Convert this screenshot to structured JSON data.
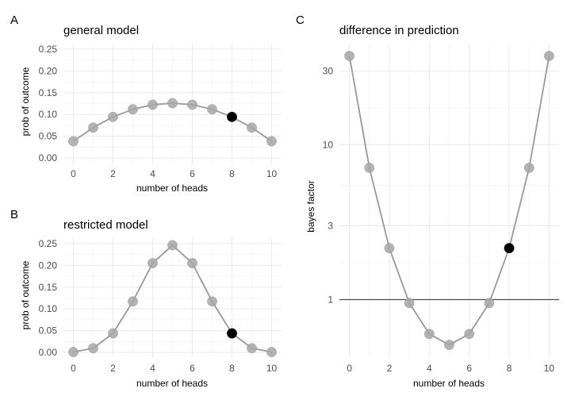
{
  "panel_tags": [
    "A",
    "B",
    "C"
  ],
  "chart_data": [
    {
      "id": "A",
      "type": "scatter",
      "title": "general model",
      "xlabel": "number of heads",
      "ylabel": "prob of outcome",
      "x": [
        0,
        1,
        2,
        3,
        4,
        5,
        6,
        7,
        8,
        9,
        10
      ],
      "values": [
        0.0385,
        0.0699,
        0.0944,
        0.1119,
        0.1224,
        0.1259,
        0.1224,
        0.1119,
        0.0944,
        0.0699,
        0.0385
      ],
      "highlight_index": 8,
      "xlim": [
        -0.5,
        10.5
      ],
      "ylim": [
        -0.0125,
        0.2625
      ],
      "xticks": [
        0,
        2,
        4,
        6,
        8,
        10
      ],
      "xtick_labels": [
        "0",
        "2",
        "4",
        "6",
        "8",
        "10"
      ],
      "yticks": [
        0,
        0.05,
        0.1,
        0.15,
        0.2,
        0.25
      ],
      "ytick_labels": [
        "0.00",
        "0.05",
        "0.10",
        "0.15",
        "0.20",
        "0.25"
      ],
      "grid": true,
      "log_y": false
    },
    {
      "id": "B",
      "type": "scatter",
      "title": "restricted model",
      "xlabel": "number of heads",
      "ylabel": "prob of outcome",
      "x": [
        0,
        1,
        2,
        3,
        4,
        5,
        6,
        7,
        8,
        9,
        10
      ],
      "values": [
        0.001,
        0.0098,
        0.0439,
        0.1172,
        0.2051,
        0.2461,
        0.2051,
        0.1172,
        0.0439,
        0.0098,
        0.001
      ],
      "highlight_index": 8,
      "xlim": [
        -0.5,
        10.5
      ],
      "ylim": [
        -0.0125,
        0.2625
      ],
      "xticks": [
        0,
        2,
        4,
        6,
        8,
        10
      ],
      "xtick_labels": [
        "0",
        "2",
        "4",
        "6",
        "8",
        "10"
      ],
      "yticks": [
        0,
        0.05,
        0.1,
        0.15,
        0.2,
        0.25
      ],
      "ytick_labels": [
        "0.00",
        "0.05",
        "0.10",
        "0.15",
        "0.20",
        "0.25"
      ],
      "grid": true,
      "log_y": false
    },
    {
      "id": "C",
      "type": "scatter",
      "title": "difference in prediction",
      "xlabel": "number of heads",
      "ylabel": "bayes factor",
      "x": [
        0,
        1,
        2,
        3,
        4,
        5,
        6,
        7,
        8,
        9,
        10
      ],
      "values": [
        37.5,
        7.1,
        2.15,
        0.95,
        0.6,
        0.51,
        0.6,
        0.95,
        2.15,
        7.1,
        37.5
      ],
      "highlight_index": 8,
      "xlim": [
        -0.5,
        10.5
      ],
      "ylim": [
        0.42,
        45
      ],
      "xticks": [
        0,
        2,
        4,
        6,
        8,
        10
      ],
      "xtick_labels": [
        "0",
        "2",
        "4",
        "6",
        "8",
        "10"
      ],
      "yticks": [
        1,
        3,
        10,
        30
      ],
      "ytick_labels": [
        "1",
        "3",
        "10",
        "30"
      ],
      "reference_line_y": 1,
      "grid": true,
      "log_y": true
    }
  ]
}
